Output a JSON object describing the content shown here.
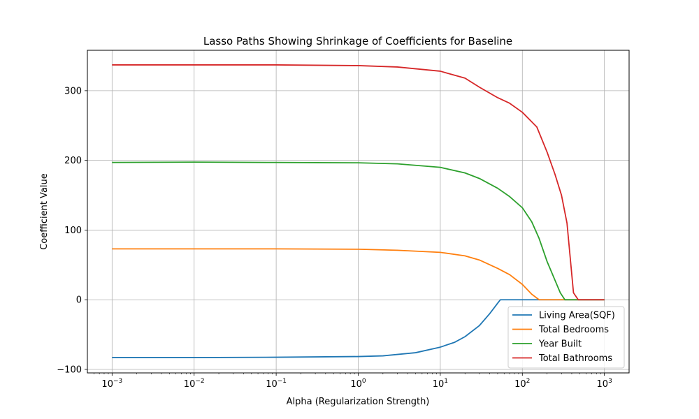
{
  "chart_data": {
    "type": "line",
    "title": "Lasso Paths Showing Shrinkage of Coefficients for Baseline",
    "xlabel": "Alpha (Regularization Strength)",
    "ylabel": "Coefficient Value",
    "x_scale": "log",
    "xlim": [
      0.0005,
      2000
    ],
    "ylim": [
      -105,
      358
    ],
    "x_ticks": [
      {
        "value": 0.001,
        "base": "10",
        "exp": "−3"
      },
      {
        "value": 0.01,
        "base": "10",
        "exp": "−2"
      },
      {
        "value": 0.1,
        "base": "10",
        "exp": "−1"
      },
      {
        "value": 1,
        "base": "10",
        "exp": "0"
      },
      {
        "value": 10,
        "base": "10",
        "exp": "1"
      },
      {
        "value": 100,
        "base": "10",
        "exp": "2"
      },
      {
        "value": 1000,
        "base": "10",
        "exp": "3"
      }
    ],
    "y_ticks": [
      {
        "value": -100,
        "label": "−100"
      },
      {
        "value": 0,
        "label": "0"
      },
      {
        "value": 100,
        "label": "100"
      },
      {
        "value": 200,
        "label": "200"
      },
      {
        "value": 300,
        "label": "300"
      }
    ],
    "grid": true,
    "legend_position": "lower right",
    "series": [
      {
        "name": "Living Area(SQF)",
        "color": "#1f77b4",
        "points": [
          [
            0.001,
            -83
          ],
          [
            0.01,
            -83
          ],
          [
            0.1,
            -82.5
          ],
          [
            1,
            -81.5
          ],
          [
            2,
            -80.5
          ],
          [
            5,
            -76
          ],
          [
            10,
            -68
          ],
          [
            15,
            -61
          ],
          [
            20,
            -53
          ],
          [
            30,
            -37
          ],
          [
            40,
            -20
          ],
          [
            50,
            -5
          ],
          [
            54,
            0
          ],
          [
            100,
            0
          ],
          [
            1000,
            0
          ]
        ]
      },
      {
        "name": "Total Bedrooms",
        "color": "#ff7f0e",
        "points": [
          [
            0.001,
            73
          ],
          [
            0.01,
            73
          ],
          [
            0.1,
            73
          ],
          [
            1,
            72.5
          ],
          [
            3,
            71
          ],
          [
            10,
            68
          ],
          [
            20,
            63
          ],
          [
            30,
            57
          ],
          [
            50,
            45
          ],
          [
            70,
            36
          ],
          [
            100,
            22
          ],
          [
            130,
            8
          ],
          [
            160,
            0
          ],
          [
            1000,
            0
          ]
        ]
      },
      {
        "name": "Year Built",
        "color": "#2ca02c",
        "points": [
          [
            0.001,
            197
          ],
          [
            0.01,
            197.5
          ],
          [
            0.1,
            197
          ],
          [
            1,
            196.5
          ],
          [
            3,
            195
          ],
          [
            10,
            190
          ],
          [
            20,
            182
          ],
          [
            30,
            174
          ],
          [
            50,
            160
          ],
          [
            70,
            148
          ],
          [
            100,
            132
          ],
          [
            130,
            112
          ],
          [
            160,
            88
          ],
          [
            200,
            55
          ],
          [
            250,
            28
          ],
          [
            290,
            10
          ],
          [
            330,
            0
          ],
          [
            1000,
            0
          ]
        ]
      },
      {
        "name": "Total Bathrooms",
        "color": "#d62728",
        "points": [
          [
            0.001,
            337
          ],
          [
            0.01,
            337
          ],
          [
            0.1,
            337
          ],
          [
            1,
            336
          ],
          [
            3,
            334
          ],
          [
            10,
            328
          ],
          [
            20,
            318
          ],
          [
            30,
            305
          ],
          [
            50,
            290
          ],
          [
            70,
            282
          ],
          [
            100,
            269
          ],
          [
            150,
            248
          ],
          [
            200,
            212
          ],
          [
            250,
            180
          ],
          [
            300,
            150
          ],
          [
            350,
            110
          ],
          [
            420,
            10
          ],
          [
            480,
            0
          ],
          [
            1000,
            0
          ]
        ]
      }
    ]
  }
}
